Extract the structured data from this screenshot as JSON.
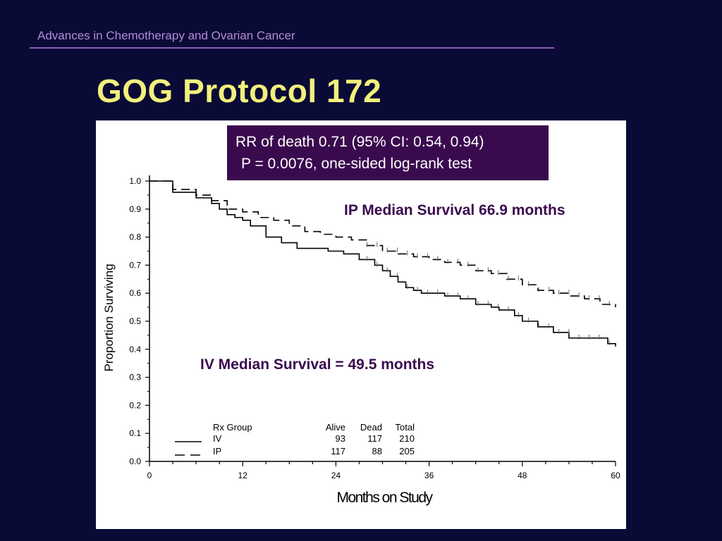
{
  "header": {
    "text": "Advances in Chemotherapy and Ovarian Cancer"
  },
  "slide": {
    "title": "GOG Protocol 172"
  },
  "stats_box": {
    "line1": "RR of death 0.71 (95% CI: 0.54, 0.94)",
    "line2": "P = 0.0076, one-sided log-rank test"
  },
  "annotations": {
    "ip": "IP Median Survival 66.9 months",
    "iv": "IV Median Survival = 49.5 months"
  },
  "legend": {
    "header": {
      "group": "Rx Group",
      "alive": "Alive",
      "dead": "Dead",
      "total": "Total"
    },
    "rows": [
      {
        "group": "IV",
        "alive": "93",
        "dead": "117",
        "total": "210"
      },
      {
        "group": "IP",
        "alive": "117",
        "dead": "88",
        "total": "205"
      }
    ]
  },
  "colors": {
    "background": "#0a0a36",
    "title": "#f2f07c",
    "header": "#b68ad6",
    "box": "#3a0a4e",
    "annotation": "#3a0a4e"
  },
  "chart_data": {
    "type": "line",
    "title": "",
    "xlabel": "Months on Study",
    "ylabel": "Proportion Surviving",
    "xlim": [
      0,
      60
    ],
    "ylim": [
      0,
      1.0
    ],
    "xticks": [
      "0",
      "12",
      "24",
      "36",
      "48",
      "60"
    ],
    "yticks": [
      "0.0",
      "0.1",
      "0.2",
      "0.3",
      "0.4",
      "0.5",
      "0.6",
      "0.7",
      "0.8",
      "0.9",
      "1.0"
    ],
    "series": [
      {
        "name": "IV",
        "style": "solid",
        "x": [
          0,
          3,
          6,
          8,
          9,
          10,
          11,
          12,
          13,
          15,
          17,
          19,
          21,
          23,
          25,
          27,
          29,
          30,
          31,
          32,
          33,
          34,
          35,
          36,
          38,
          40,
          42,
          44,
          45,
          47,
          48,
          50,
          52,
          54,
          56,
          58,
          59,
          60
        ],
        "y": [
          1.0,
          0.96,
          0.94,
          0.92,
          0.9,
          0.88,
          0.87,
          0.86,
          0.84,
          0.8,
          0.78,
          0.76,
          0.76,
          0.75,
          0.74,
          0.72,
          0.7,
          0.68,
          0.66,
          0.64,
          0.62,
          0.61,
          0.6,
          0.6,
          0.59,
          0.58,
          0.56,
          0.55,
          0.54,
          0.52,
          0.5,
          0.48,
          0.46,
          0.44,
          0.44,
          0.44,
          0.42,
          0.41
        ]
      },
      {
        "name": "IP",
        "style": "dashed",
        "x": [
          0,
          3,
          6,
          8,
          10,
          12,
          14,
          16,
          18,
          20,
          22,
          24,
          26,
          28,
          30,
          32,
          34,
          36,
          38,
          40,
          42,
          44,
          46,
          48,
          50,
          52,
          54,
          56,
          58,
          60
        ],
        "y": [
          1.0,
          0.97,
          0.95,
          0.93,
          0.9,
          0.89,
          0.87,
          0.86,
          0.84,
          0.82,
          0.81,
          0.8,
          0.79,
          0.77,
          0.75,
          0.74,
          0.73,
          0.72,
          0.71,
          0.7,
          0.68,
          0.67,
          0.65,
          0.63,
          0.61,
          0.6,
          0.59,
          0.58,
          0.56,
          0.55
        ]
      }
    ]
  }
}
